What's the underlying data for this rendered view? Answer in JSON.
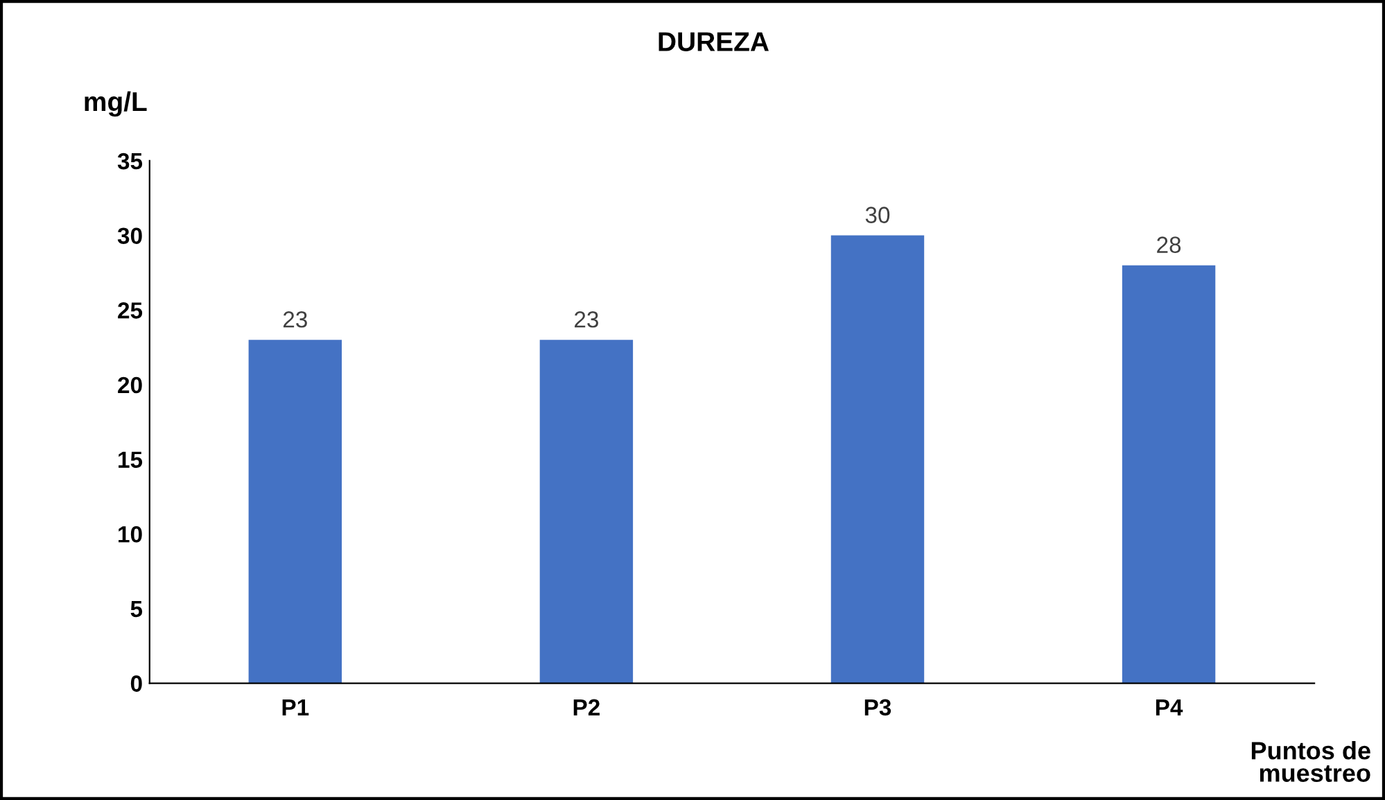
{
  "chart_data": {
    "type": "bar",
    "title": "DUREZA",
    "ylabel": "mg/L",
    "xlabel": "Puntos de\nmuestreo",
    "categories": [
      "P1",
      "P2",
      "P3",
      "P4"
    ],
    "values": [
      23,
      23,
      30,
      28
    ],
    "color": "#4472c4",
    "ylim": [
      0,
      35
    ],
    "yticks": [
      0,
      5,
      10,
      15,
      20,
      25,
      30,
      35
    ],
    "grid": false,
    "data_labels": true
  }
}
